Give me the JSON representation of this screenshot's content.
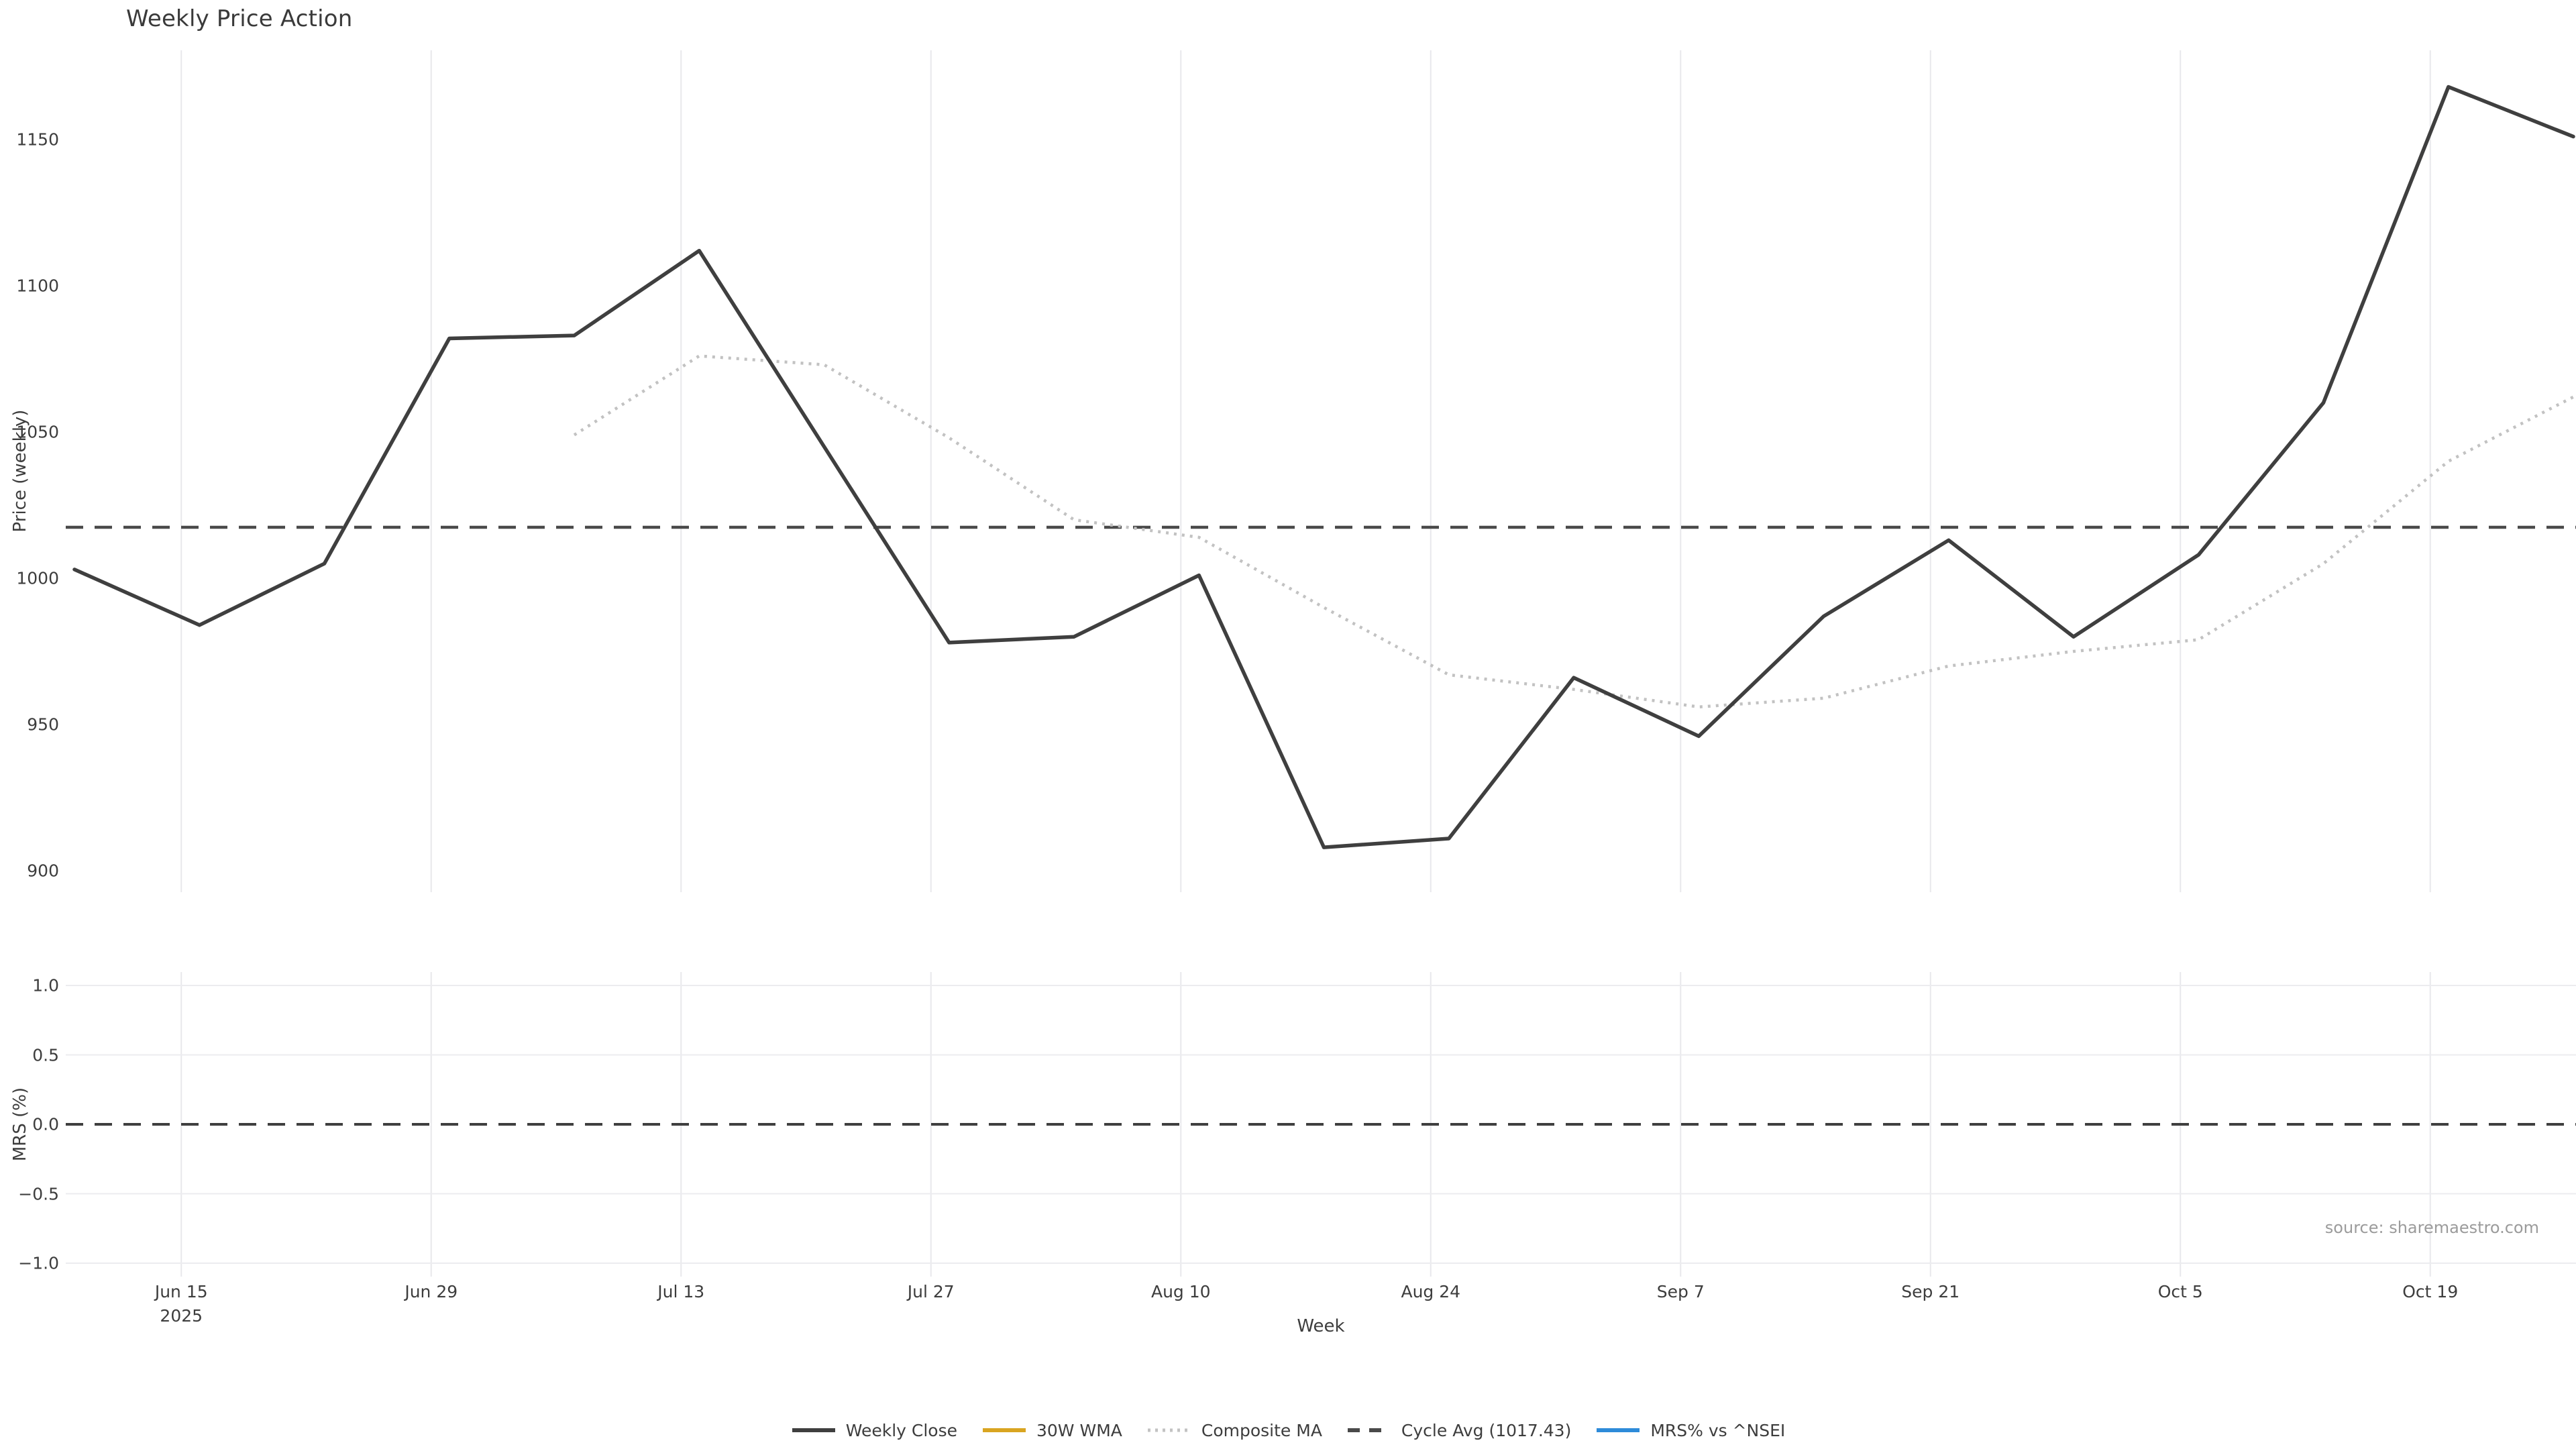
{
  "title": "Weekly Price Action",
  "source_note": "source: sharemaestro.com",
  "price_axis": {
    "label": "Price (weekly)",
    "ticks": [
      {
        "label": "1150",
        "value": 1150
      },
      {
        "label": "1100",
        "value": 1100
      },
      {
        "label": "1050",
        "value": 1050
      },
      {
        "label": "1000",
        "value": 1000
      },
      {
        "label": "950",
        "value": 950
      },
      {
        "label": "900",
        "value": 900
      }
    ]
  },
  "mrs_axis": {
    "label": "MRS (%)",
    "ticks": [
      {
        "label": "1.0",
        "value": 1.0
      },
      {
        "label": "0.5",
        "value": 0.5
      },
      {
        "label": "0.0",
        "value": 0.0
      },
      {
        "label": "−0.5",
        "value": -0.5
      },
      {
        "label": "−1.0",
        "value": -1.0
      }
    ]
  },
  "x_axis": {
    "label": "Week",
    "ticks": [
      {
        "label": "Jun 15",
        "sub": "2025",
        "week": 1
      },
      {
        "label": "Jun 29",
        "sub": "",
        "week": 3
      },
      {
        "label": "Jul 13",
        "sub": "",
        "week": 5
      },
      {
        "label": "Jul 27",
        "sub": "",
        "week": 7
      },
      {
        "label": "Aug 10",
        "sub": "",
        "week": 9
      },
      {
        "label": "Aug 24",
        "sub": "",
        "week": 11
      },
      {
        "label": "Sep 7",
        "sub": "",
        "week": 13
      },
      {
        "label": "Sep 21",
        "sub": "",
        "week": 15
      },
      {
        "label": "Oct 5",
        "sub": "",
        "week": 17
      },
      {
        "label": "Oct 19",
        "sub": "",
        "week": 19
      }
    ]
  },
  "legend": {
    "items": [
      {
        "label": "Weekly Close",
        "color": "#3f3f3f",
        "style": "solid"
      },
      {
        "label": "30W WMA",
        "color": "#d9a521",
        "style": "solid"
      },
      {
        "label": "Composite MA",
        "color": "#c2c2c2",
        "style": "dotted"
      },
      {
        "label": "Cycle Avg (1017.43)",
        "color": "#4a4a4a",
        "style": "dashed"
      },
      {
        "label": "MRS% vs ^NSEI",
        "color": "#2e8bd9",
        "style": "solid"
      }
    ]
  },
  "colors": {
    "weekly_close": "#3f3f3f",
    "wma_30w": "#d9a521",
    "composite_ma": "#c2c2c2",
    "cycle_avg": "#4a4a4a",
    "mrs": "#2e8bd9",
    "grid": "#e8e8ec",
    "zero_dash": "#3f3f3f"
  },
  "chart_data": [
    {
      "type": "line",
      "title": "Weekly Price Action",
      "ylabel": "Price (weekly)",
      "xlabel": "Week",
      "ylim": [
        893,
        1181
      ],
      "grid": "vertical-only",
      "legend_position": "bottom-center",
      "x": [
        "Jun 8",
        "Jun 15",
        "Jun 22",
        "Jun 29",
        "Jul 6",
        "Jul 13",
        "Jul 20",
        "Jul 27",
        "Aug 3",
        "Aug 10",
        "Aug 17",
        "Aug 24",
        "Aug 31",
        "Sep 7",
        "Sep 14",
        "Sep 21",
        "Sep 28",
        "Oct 5",
        "Oct 12",
        "Oct 19",
        "Oct 26"
      ],
      "series": [
        {
          "name": "Weekly Close",
          "style": "solid",
          "values": [
            1003,
            984,
            1005,
            1082,
            1083,
            1112,
            1045,
            978,
            980,
            1001,
            908,
            911,
            966,
            946,
            987,
            1013,
            980,
            1008,
            1060,
            1168,
            1151
          ]
        },
        {
          "name": "Composite MA",
          "style": "dotted",
          "start_index": 4,
          "values": [
            1049,
            1076,
            1073,
            1048,
            1020,
            1014,
            990,
            967,
            962,
            956,
            959,
            970,
            975,
            979,
            1005,
            1040,
            1062
          ]
        },
        {
          "name": "30W WMA",
          "style": "solid",
          "values": []
        },
        {
          "name": "Cycle Avg",
          "style": "dashed-horizontal",
          "value": 1017.43
        }
      ]
    },
    {
      "type": "line",
      "ylabel": "MRS (%)",
      "ylim": [
        -1.1,
        1.1
      ],
      "grid": "both",
      "annotations": [
        {
          "name": "zero line",
          "style": "dashed-horizontal",
          "value": 0.0
        }
      ],
      "series": [
        {
          "name": "MRS% vs ^NSEI",
          "style": "solid",
          "values": []
        }
      ]
    }
  ]
}
